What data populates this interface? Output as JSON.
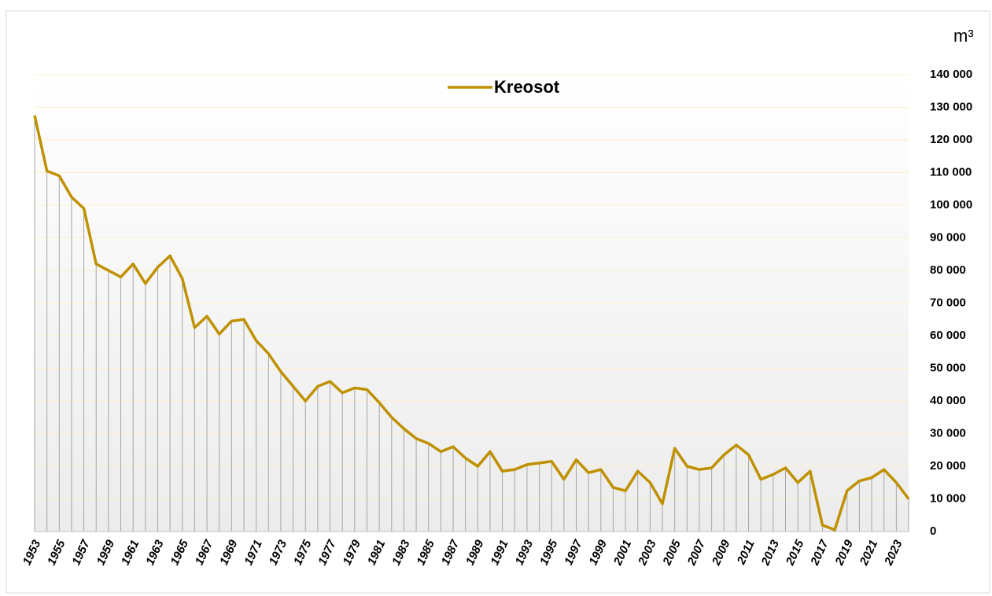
{
  "chart_data": {
    "type": "line",
    "y_axis_label": "m³",
    "x": [
      1953,
      1954,
      1955,
      1956,
      1957,
      1958,
      1959,
      1960,
      1961,
      1962,
      1963,
      1964,
      1965,
      1966,
      1967,
      1968,
      1969,
      1970,
      1971,
      1972,
      1973,
      1974,
      1975,
      1976,
      1977,
      1978,
      1979,
      1980,
      1981,
      1982,
      1983,
      1984,
      1985,
      1986,
      1987,
      1988,
      1989,
      1990,
      1991,
      1992,
      1993,
      1994,
      1995,
      1996,
      1997,
      1998,
      1999,
      2000,
      2001,
      2002,
      2003,
      2004,
      2005,
      2006,
      2007,
      2008,
      2009,
      2010,
      2011,
      2012,
      2013,
      2014,
      2015,
      2016,
      2017,
      2018,
      2019,
      2020,
      2021,
      2022,
      2023,
      2024
    ],
    "series": [
      {
        "name": "Kreosot",
        "color": "#bf9000",
        "values": [
          127500,
          110500,
          109000,
          102500,
          99000,
          82000,
          80000,
          78000,
          82000,
          76000,
          81000,
          84500,
          77500,
          62500,
          66000,
          60500,
          64500,
          65000,
          58500,
          54500,
          49000,
          44500,
          40000,
          44500,
          46000,
          42500,
          44000,
          43500,
          39500,
          35000,
          31500,
          28500,
          27000,
          24500,
          26000,
          22500,
          20000,
          24500,
          18500,
          19000,
          20500,
          21000,
          21500,
          16000,
          22000,
          18000,
          19000,
          13500,
          12500,
          18500,
          15000,
          8500,
          25500,
          20000,
          19000,
          19500,
          23500,
          26500,
          23500,
          16000,
          17500,
          19500,
          15000,
          18500,
          2000,
          500,
          12500,
          15500,
          16500,
          19000,
          15000,
          10000
        ]
      }
    ],
    "xlim": [
      1953,
      2024
    ],
    "xticks": [
      1953,
      1955,
      1957,
      1959,
      1961,
      1963,
      1965,
      1967,
      1969,
      1971,
      1973,
      1975,
      1977,
      1979,
      1981,
      1983,
      1985,
      1987,
      1989,
      1991,
      1993,
      1995,
      1997,
      1999,
      2001,
      2003,
      2005,
      2007,
      2009,
      2011,
      2013,
      2015,
      2017,
      2019,
      2021,
      2023
    ],
    "ylim": [
      0,
      140000
    ],
    "yticks": [
      0,
      {
        "value": 10000,
        "label": "10 000"
      },
      {
        "value": 20000,
        "label": "20 000"
      },
      {
        "value": 30000,
        "label": "30 000"
      },
      {
        "value": 40000,
        "label": "40 000"
      },
      {
        "value": 50000,
        "label": "50 000"
      },
      {
        "value": 60000,
        "label": "60 000"
      },
      {
        "value": 70000,
        "label": "70 000"
      },
      {
        "value": 80000,
        "label": "80 000"
      },
      {
        "value": 90000,
        "label": "90 000"
      },
      {
        "value": 100000,
        "label": "100 000"
      },
      {
        "value": 110000,
        "label": "110 000"
      },
      {
        "value": 120000,
        "label": "120 000"
      },
      {
        "value": 130000,
        "label": "130 000"
      },
      {
        "value": 140000,
        "label": "140 000"
      }
    ],
    "grid": true,
    "drop_lines": true,
    "legend": "top"
  }
}
